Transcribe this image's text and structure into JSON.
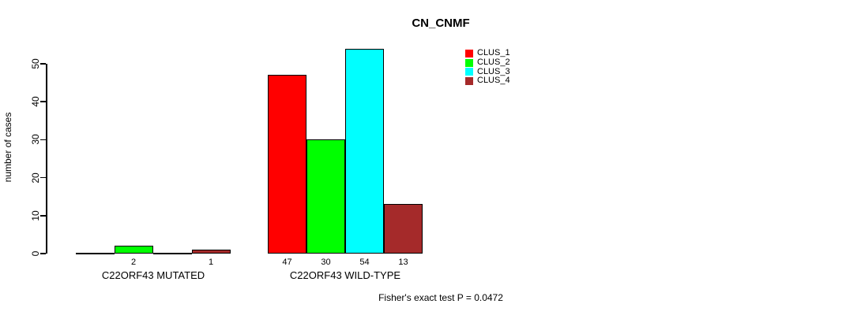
{
  "title": "CN_CNMF",
  "footer_text": "Fisher's exact test P = 0.0472",
  "chart_data": {
    "type": "bar",
    "title": "CN_CNMF",
    "xlabel": "",
    "ylabel": "number of cases",
    "ylim": [
      0,
      50
    ],
    "yticks": [
      0,
      10,
      20,
      30,
      40,
      50
    ],
    "grid": false,
    "legend_position": "top-right",
    "groups": [
      "C22ORF43 MUTATED",
      "C22ORF43 WILD-TYPE"
    ],
    "series": [
      {
        "name": "CLUS_1",
        "color": "#FF0000",
        "values": [
          0,
          47
        ]
      },
      {
        "name": "CLUS_2",
        "color": "#00FF00",
        "values": [
          2,
          30
        ]
      },
      {
        "name": "CLUS_3",
        "color": "#00FFFF",
        "values": [
          0,
          54
        ]
      },
      {
        "name": "CLUS_4",
        "color": "#A52A2A",
        "values": [
          1,
          13
        ]
      }
    ],
    "bar_value_labels_shown": [
      [
        "2",
        "1"
      ],
      [
        "47",
        "30",
        "54",
        "13"
      ]
    ],
    "zero_value_labels_hidden": true,
    "annotation": "Fisher's exact test P = 0.0472"
  }
}
